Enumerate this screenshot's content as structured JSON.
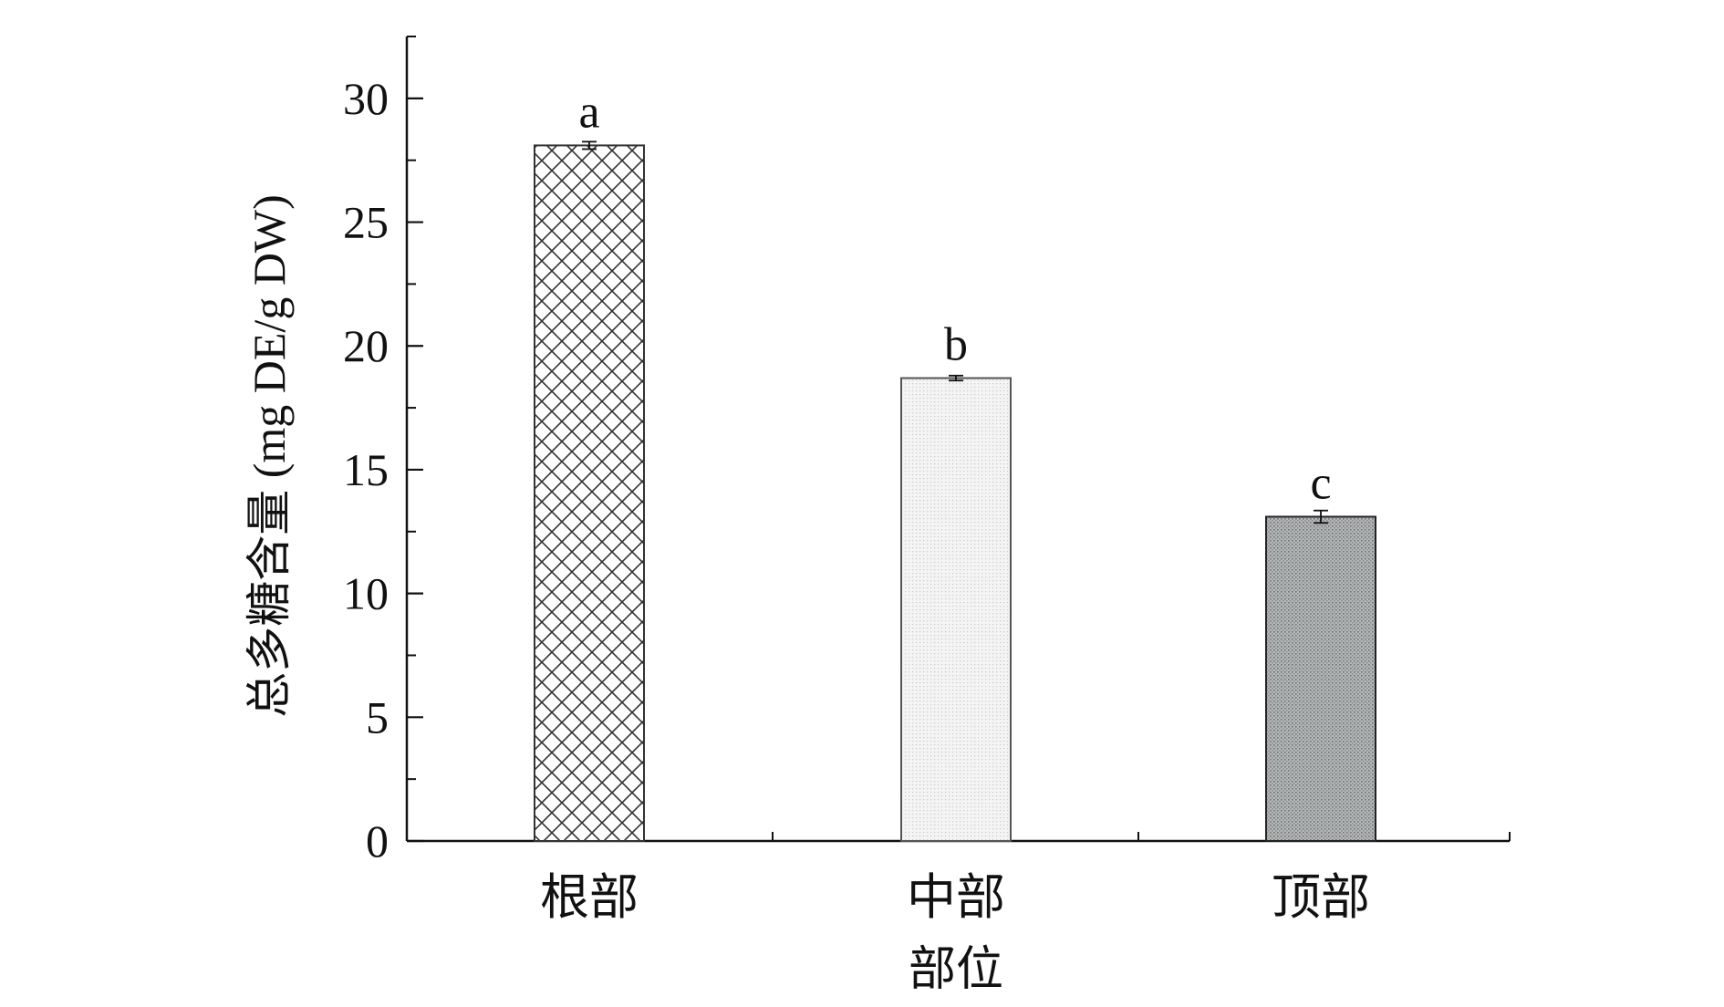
{
  "chart_data": {
    "type": "bar",
    "title": "",
    "xlabel": "部位",
    "ylabel": "总多糖含量 (mg DE/g DW)",
    "ylim": [
      0,
      32.5
    ],
    "yticks": [
      0,
      5,
      10,
      15,
      20,
      25,
      30
    ],
    "ytick_labels": [
      "0",
      "5",
      "10",
      "15",
      "20",
      "25",
      "30"
    ],
    "grid": false,
    "legend": "none",
    "categories": [
      "根部",
      "中部",
      "顶部"
    ],
    "values": [
      28.1,
      18.7,
      13.1
    ],
    "errors": [
      0.15,
      0.1,
      0.25
    ],
    "significance": [
      "a",
      "b",
      "c"
    ],
    "bar_styles": [
      {
        "pattern": "crosshatch",
        "fill": "#ffffff",
        "stroke": "#333333"
      },
      {
        "pattern": "fine-dots",
        "fill": "#f2f2f2",
        "stroke": "#555555"
      },
      {
        "pattern": "dense-dots",
        "fill": "#a9adad",
        "stroke": "#222222"
      }
    ]
  }
}
